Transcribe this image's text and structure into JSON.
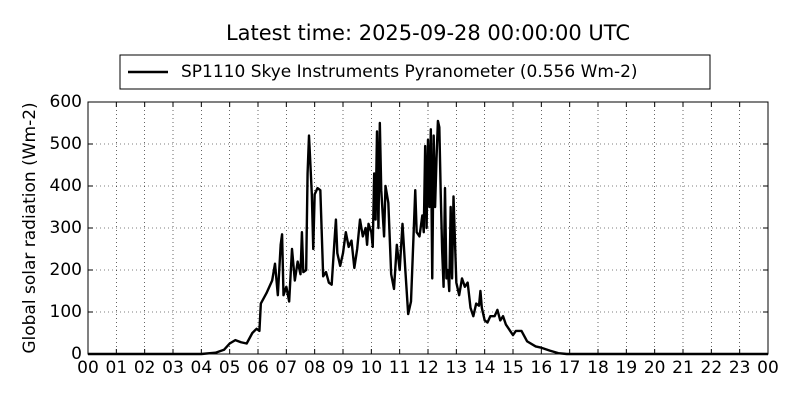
{
  "chart_data": {
    "type": "line",
    "title": "Latest time: 2025-09-28 00:00:00 UTC",
    "ylabel": "Global solar radiation (Wm-2)",
    "x": [
      0,
      4,
      4.5,
      4.8,
      5.0,
      5.2,
      5.4,
      5.6,
      5.8,
      5.95,
      6.05,
      6.1,
      6.3,
      6.5,
      6.6,
      6.7,
      6.8,
      6.85,
      6.9,
      7.0,
      7.1,
      7.2,
      7.3,
      7.4,
      7.5,
      7.55,
      7.6,
      7.7,
      7.75,
      7.8,
      7.9,
      7.95,
      8.0,
      8.1,
      8.2,
      8.3,
      8.4,
      8.5,
      8.6,
      8.7,
      8.75,
      8.8,
      8.9,
      9.0,
      9.1,
      9.2,
      9.3,
      9.4,
      9.5,
      9.6,
      9.7,
      9.8,
      9.85,
      9.9,
      10.0,
      10.05,
      10.1,
      10.15,
      10.2,
      10.25,
      10.3,
      10.35,
      10.45,
      10.5,
      10.6,
      10.7,
      10.8,
      10.9,
      11.0,
      11.1,
      11.2,
      11.3,
      11.4,
      11.5,
      11.55,
      11.6,
      11.7,
      11.8,
      11.85,
      11.9,
      11.95,
      12.0,
      12.05,
      12.1,
      12.15,
      12.2,
      12.25,
      12.3,
      12.35,
      12.4,
      12.45,
      12.5,
      12.55,
      12.6,
      12.65,
      12.7,
      12.75,
      12.8,
      12.85,
      12.9,
      13.0,
      13.1,
      13.2,
      13.3,
      13.4,
      13.5,
      13.6,
      13.7,
      13.8,
      13.85,
      13.9,
      14.0,
      14.1,
      14.2,
      14.35,
      14.45,
      14.55,
      14.65,
      14.75,
      14.9,
      15.0,
      15.1,
      15.3,
      15.5,
      15.8,
      16.0,
      16.3,
      16.6,
      16.9,
      24
    ],
    "series": [
      {
        "name": "SP1110 Skye Instruments Pyranometer (0.556 Wm-2)",
        "color": "#000000",
        "values": [
          0,
          0,
          3,
          10,
          25,
          33,
          28,
          25,
          50,
          60,
          55,
          120,
          145,
          175,
          215,
          140,
          260,
          285,
          140,
          160,
          125,
          250,
          175,
          220,
          190,
          290,
          195,
          200,
          430,
          520,
          380,
          250,
          380,
          395,
          390,
          185,
          195,
          170,
          165,
          270,
          320,
          240,
          210,
          240,
          290,
          255,
          270,
          205,
          250,
          320,
          280,
          300,
          260,
          310,
          290,
          255,
          430,
          320,
          530,
          300,
          550,
          390,
          280,
          400,
          360,
          190,
          155,
          260,
          200,
          310,
          200,
          95,
          125,
          300,
          390,
          290,
          280,
          330,
          290,
          495,
          300,
          510,
          350,
          535,
          180,
          520,
          350,
          465,
          555,
          540,
          380,
          245,
          160,
          395,
          180,
          200,
          150,
          350,
          180,
          375,
          170,
          140,
          180,
          160,
          170,
          110,
          90,
          120,
          115,
          150,
          110,
          80,
          75,
          90,
          90,
          105,
          80,
          90,
          70,
          55,
          45,
          55,
          55,
          30,
          18,
          15,
          8,
          2,
          0,
          0
        ]
      }
    ],
    "xlim": [
      0,
      24
    ],
    "xticks": [
      {
        "value": 0,
        "label": "00"
      },
      {
        "value": 1,
        "label": "01"
      },
      {
        "value": 2,
        "label": "02"
      },
      {
        "value": 3,
        "label": "03"
      },
      {
        "value": 4,
        "label": "04"
      },
      {
        "value": 5,
        "label": "05"
      },
      {
        "value": 6,
        "label": "06"
      },
      {
        "value": 7,
        "label": "07"
      },
      {
        "value": 8,
        "label": "08"
      },
      {
        "value": 9,
        "label": "09"
      },
      {
        "value": 10,
        "label": "10"
      },
      {
        "value": 11,
        "label": "11"
      },
      {
        "value": 12,
        "label": "12"
      },
      {
        "value": 13,
        "label": "13"
      },
      {
        "value": 14,
        "label": "14"
      },
      {
        "value": 15,
        "label": "15"
      },
      {
        "value": 16,
        "label": "16"
      },
      {
        "value": 17,
        "label": "17"
      },
      {
        "value": 18,
        "label": "18"
      },
      {
        "value": 19,
        "label": "19"
      },
      {
        "value": 20,
        "label": "20"
      },
      {
        "value": 21,
        "label": "21"
      },
      {
        "value": 22,
        "label": "22"
      },
      {
        "value": 23,
        "label": "23"
      },
      {
        "value": 24,
        "label": "00"
      }
    ],
    "ylim": [
      0,
      600
    ],
    "yticks": [
      0,
      100,
      200,
      300,
      400,
      500,
      600
    ],
    "grid": true,
    "legend": "upper center"
  }
}
